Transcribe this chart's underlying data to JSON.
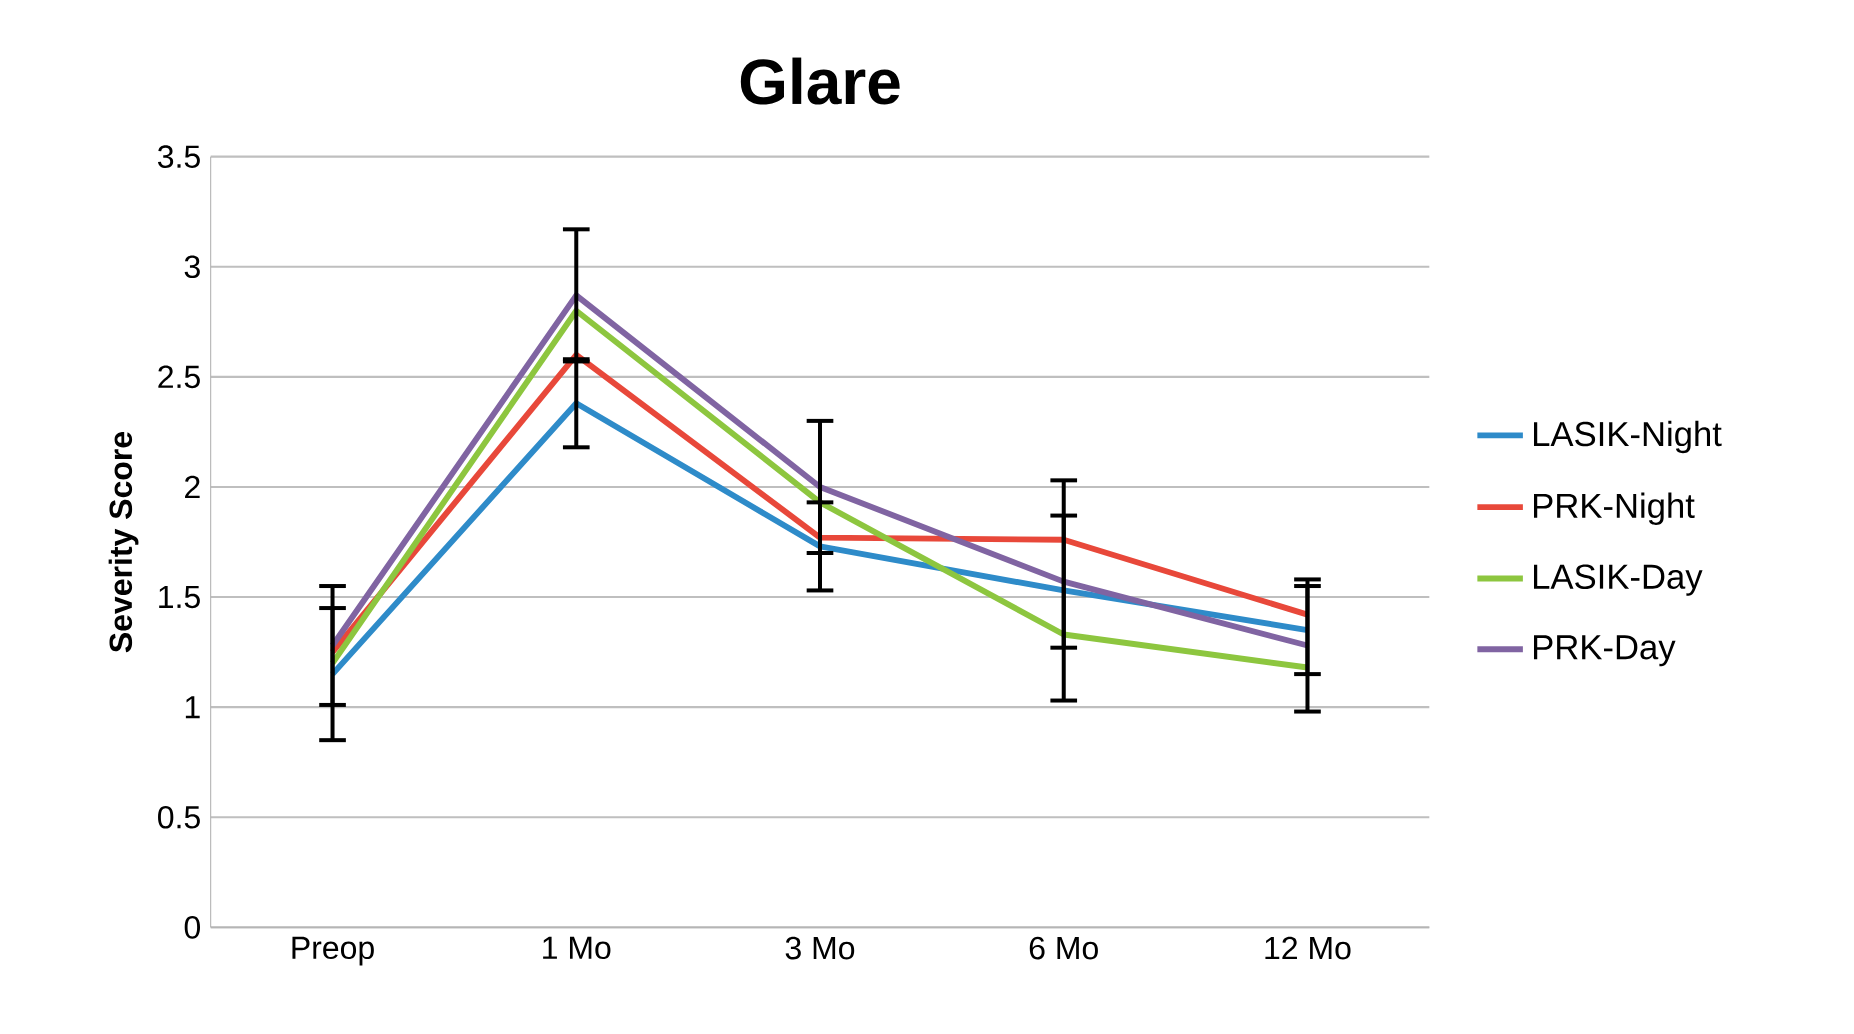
{
  "chart_data": {
    "type": "line",
    "title": "Glare",
    "ylabel": "Severity Score",
    "categories": [
      "Preop",
      "1 Mo",
      "3 Mo",
      "6 Mo",
      "12 Mo"
    ],
    "series": [
      {
        "name": "LASIK-Night",
        "color": "#2e8bc9",
        "values": [
          1.15,
          2.38,
          1.73,
          1.53,
          1.35
        ],
        "errors": [
          0.3,
          0.2,
          0.2,
          0.5,
          0.2
        ]
      },
      {
        "name": "PRK-Night",
        "color": "#e8483a",
        "values": [
          1.25,
          2.6,
          1.77,
          1.76,
          1.42
        ]
      },
      {
        "name": "LASIK-Day",
        "color": "#8dc63f",
        "values": [
          1.2,
          2.8,
          1.93,
          1.33,
          1.18
        ]
      },
      {
        "name": "PRK-Day",
        "color": "#8064a2",
        "values": [
          1.28,
          2.87,
          2.0,
          1.57,
          1.28
        ],
        "errors": [
          0.27,
          0.3,
          0.3,
          0.3,
          0.3
        ]
      }
    ],
    "ylim": [
      0,
      3.5
    ],
    "yticks": [
      0,
      0.5,
      1,
      1.5,
      2,
      2.5,
      3,
      3.5
    ],
    "grid": "y",
    "legend": "right",
    "marker": "none",
    "line_style": "solid"
  }
}
